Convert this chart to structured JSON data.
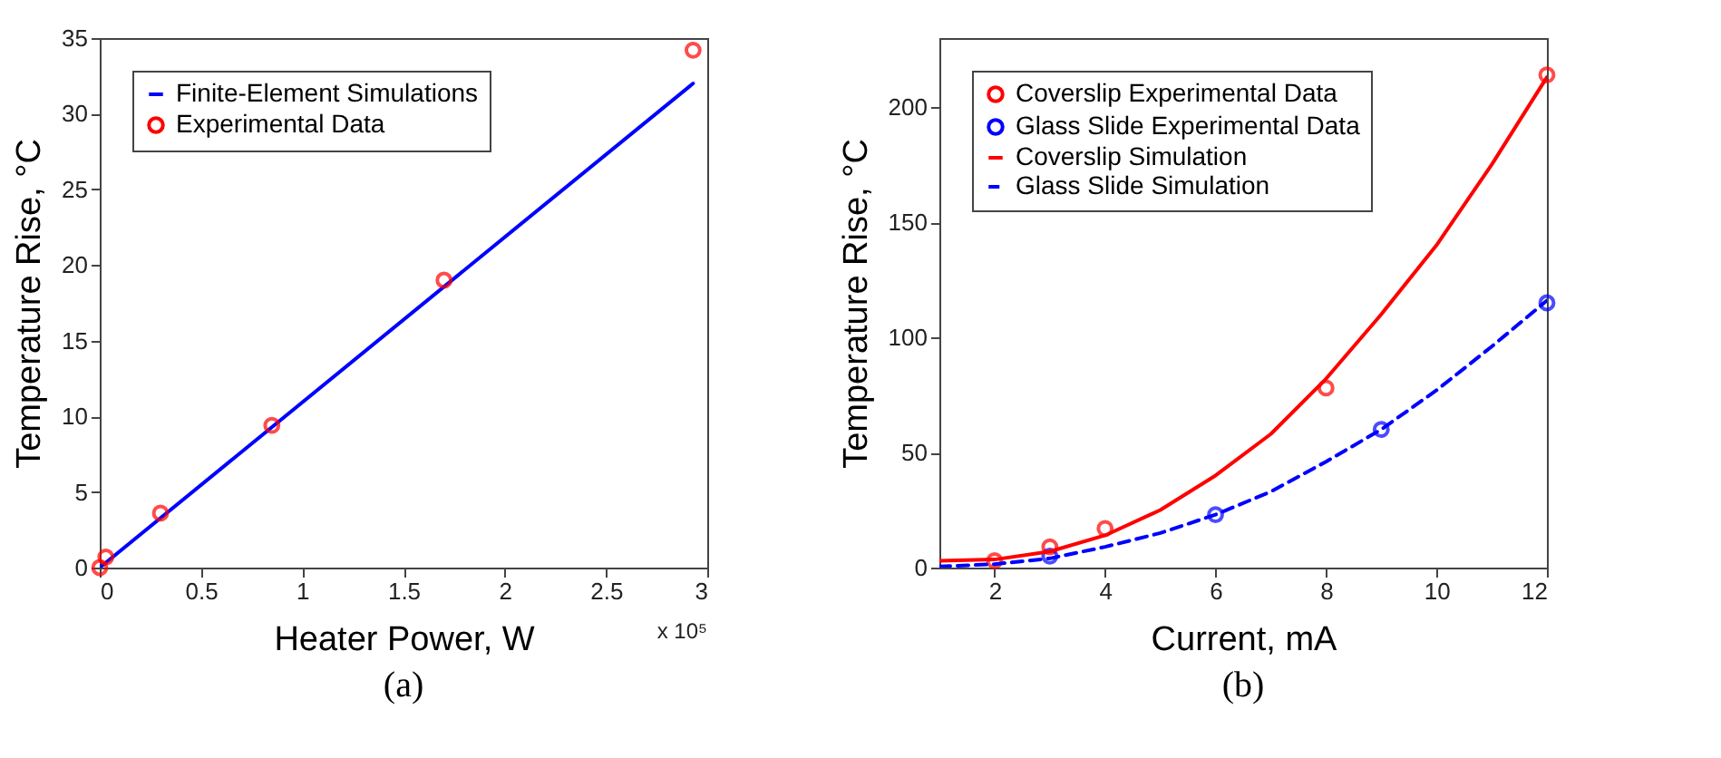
{
  "chart_data": [
    {
      "type": "line",
      "title": "(a)",
      "xlabel": "Heater Power, W",
      "ylabel": "Temperature Rise, °C",
      "annotations": [
        "x 10⁵"
      ],
      "xlim": [
        0,
        3
      ],
      "xticks": [
        0,
        0.5,
        1,
        1.5,
        2,
        2.5,
        3
      ],
      "ylim": [
        0,
        35
      ],
      "yticks": [
        0,
        5,
        10,
        15,
        20,
        25,
        30,
        35
      ],
      "legend": "top left",
      "series": [
        {
          "name": "Finite-Element Simulations",
          "type": "line",
          "color": "#0000ff",
          "line_style": "solid",
          "x": [
            0,
            2.93
          ],
          "values": [
            0,
            32
          ]
        },
        {
          "name": "Experimental Data",
          "type": "scatter",
          "color": "#ff0000",
          "marker": "circle",
          "x": [
            0,
            0.03,
            0.3,
            0.85,
            1.7,
            2.93
          ],
          "values": [
            0,
            0.7,
            3.6,
            9.4,
            19,
            34.2
          ]
        }
      ]
    },
    {
      "type": "line",
      "title": "(b)",
      "xlabel": "Current, mA",
      "ylabel": "Temperature Rise, °C",
      "xlim": [
        1,
        12
      ],
      "xticks": [
        2,
        4,
        6,
        8,
        10,
        12
      ],
      "ylim": [
        0,
        230
      ],
      "yticks": [
        0,
        50,
        100,
        150,
        200
      ],
      "legend": "top left",
      "series": [
        {
          "name": "Coverslip Experimental Data",
          "type": "scatter",
          "color": "#ff0000",
          "marker": "circle",
          "x": [
            2,
            3,
            4,
            8,
            12
          ],
          "values": [
            3,
            9,
            17,
            78,
            214
          ]
        },
        {
          "name": "Glass Slide Experimental Data",
          "type": "scatter",
          "color": "#0000ff",
          "marker": "circle",
          "x": [
            3,
            6,
            9,
            12
          ],
          "values": [
            5,
            23,
            60,
            115
          ]
        },
        {
          "name": "Coverslip Simulation",
          "type": "line",
          "color": "#ff0000",
          "line_style": "solid",
          "x": [
            1,
            2,
            3,
            4,
            5,
            6,
            7,
            8,
            9,
            10,
            11,
            12
          ],
          "values": [
            3,
            3.5,
            7,
            14,
            25,
            40,
            58,
            82,
            110,
            140,
            175,
            213
          ]
        },
        {
          "name": "Glass Slide Simulation",
          "type": "line",
          "color": "#0000ff",
          "line_style": "dashed",
          "x": [
            1,
            2,
            3,
            4,
            5,
            6,
            7,
            8,
            9,
            10,
            11,
            12
          ],
          "values": [
            0.5,
            1.5,
            4,
            9,
            15,
            23,
            33,
            46,
            60,
            77,
            96,
            116
          ]
        }
      ]
    }
  ]
}
